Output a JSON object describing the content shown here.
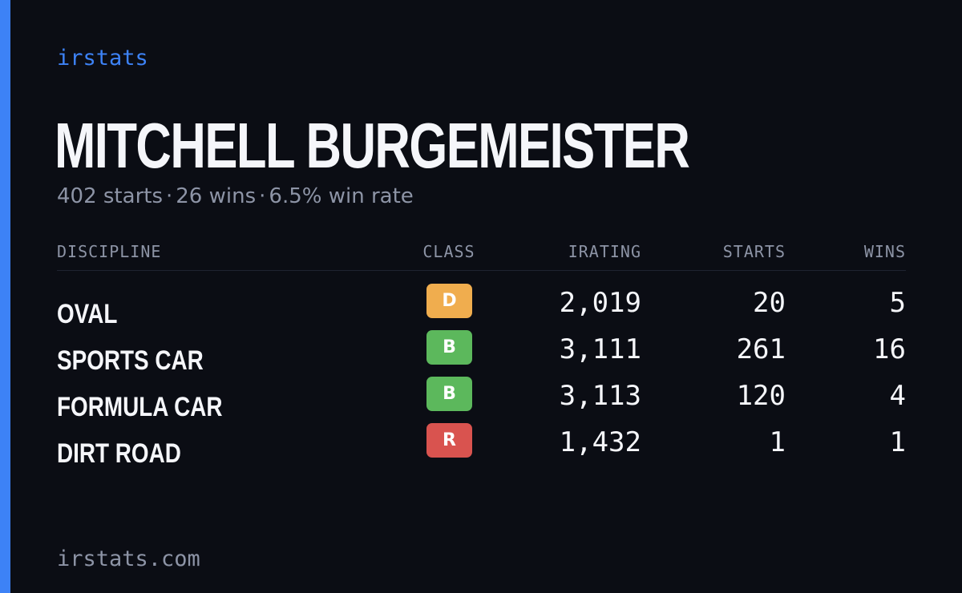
{
  "brand": "irstats",
  "player": {
    "name": "MITCHELL BURGEMEISTER",
    "starts_text": "402 starts",
    "wins_text": "26 wins",
    "win_rate_text": "6.5% win rate",
    "separator": "·"
  },
  "table": {
    "headers": {
      "discipline": "DISCIPLINE",
      "class": "CLASS",
      "irating": "IRATING",
      "starts": "STARTS",
      "wins": "WINS"
    },
    "rows": [
      {
        "discipline": "OVAL",
        "class": "D",
        "class_color": "#f0ad4e",
        "irating": "2,019",
        "starts": "20",
        "wins": "5"
      },
      {
        "discipline": "SPORTS CAR",
        "class": "B",
        "class_color": "#5cb85c",
        "irating": "3,111",
        "starts": "261",
        "wins": "16"
      },
      {
        "discipline": "FORMULA CAR",
        "class": "B",
        "class_color": "#5cb85c",
        "irating": "3,113",
        "starts": "120",
        "wins": "4"
      },
      {
        "discipline": "DIRT ROAD",
        "class": "R",
        "class_color": "#d9534f",
        "irating": "1,432",
        "starts": "1",
        "wins": "1"
      }
    ]
  },
  "footer": "irstats.com",
  "colors": {
    "background": "#0b0d14",
    "accent": "#3d82f6",
    "text_primary": "#f5f6fa",
    "text_muted": "#8d94a6"
  }
}
